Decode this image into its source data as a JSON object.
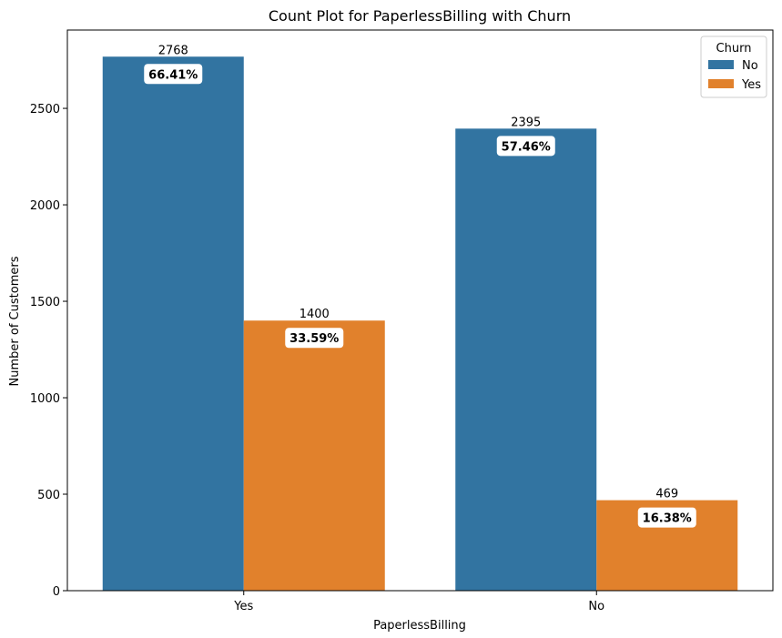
{
  "chart_data": {
    "type": "bar",
    "title": "Count Plot for PaperlessBilling with Churn",
    "xlabel": "PaperlessBilling",
    "ylabel": "Number of Customers",
    "categories": [
      "Yes",
      "No"
    ],
    "ylim": [
      0,
      2906
    ],
    "yticks": [
      0,
      500,
      1000,
      1500,
      2000,
      2500
    ],
    "legend": {
      "title": "Churn",
      "placement": "top-right"
    },
    "series": [
      {
        "name": "No",
        "color": "#3274a1",
        "values": [
          2768,
          2395
        ],
        "percent_labels": [
          "66.41%",
          "57.46%"
        ]
      },
      {
        "name": "Yes",
        "color": "#e1812c",
        "values": [
          1400,
          469
        ],
        "percent_labels": [
          "33.59%",
          "16.38%"
        ]
      }
    ],
    "percent_label_color": "#ff0000",
    "grid": false
  }
}
